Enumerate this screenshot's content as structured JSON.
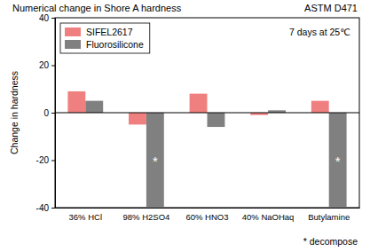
{
  "chart_data": {
    "type": "bar",
    "title": "Numerical change in Shore A hardness",
    "subtitle": "ASTM D471",
    "note": "7 days at 25℃",
    "footnote": "* decompose",
    "y_label": "Change in hardness",
    "categories": [
      "36% HCl",
      "98% H2SO4",
      "60% HNO3",
      "40% NaOHaq",
      "Butylamine"
    ],
    "series": [
      {
        "name": "SIFEL2617",
        "color": "#f08080",
        "values": [
          9,
          -5,
          8,
          -1,
          5
        ]
      },
      {
        "name": "Fluorosilicone",
        "color": "#808080",
        "values": [
          5,
          -40,
          -6,
          1,
          -40
        ]
      }
    ],
    "annotations": [
      {
        "text": "*",
        "category": "98% H2SO4",
        "series": "Fluorosilicone"
      },
      {
        "text": "*",
        "category": "Butylamine",
        "series": "Fluorosilicone"
      }
    ],
    "ylim": [
      -40,
      40
    ],
    "yticks": [
      -40,
      -20,
      0,
      20,
      40
    ],
    "grid": false,
    "legend": "upper left"
  }
}
